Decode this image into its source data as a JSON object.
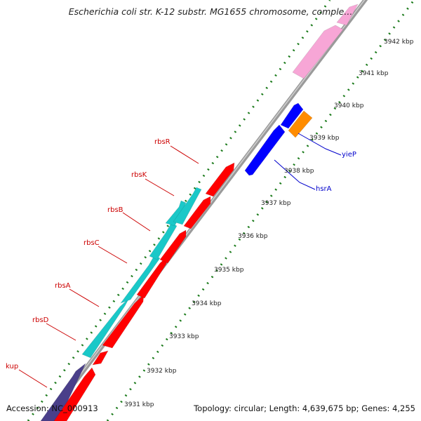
{
  "title": "Escherichia coli str. K-12 substr. MG1655 chromosome, comple...",
  "footer": {
    "accession": "Accession: NC_000913",
    "topology": "Topology: circular; Length: 4,639,675 bp; Genes: 4,255"
  },
  "colors": {
    "backbone": "#8a8a8a",
    "tick": "#1a7a1a",
    "gene_red": "#ff0000",
    "gene_cyan": "#1ac8c8",
    "gene_blue": "#0000ff",
    "gene_orange": "#ff8c00",
    "gene_pink": "#f7a6d6",
    "gene_purple": "#4a3f8a",
    "label_red": "#cc0000",
    "label_blue": "#0000cc"
  },
  "scale_labels": [
    "3931 kbp",
    "3932 kbp",
    "3933 kbp",
    "3934 kbp",
    "3935 kbp",
    "3936 kbp",
    "3937 kbp",
    "3938 kbp",
    "3939 kbp",
    "3940 kbp",
    "3941 kbp",
    "3942 kbp"
  ],
  "gene_labels": {
    "red": [
      "rbsR",
      "rbsK",
      "rbsB",
      "rbsC",
      "rbsA",
      "rbsD",
      "kup"
    ],
    "blue": [
      "yieP",
      "hsrA"
    ]
  }
}
